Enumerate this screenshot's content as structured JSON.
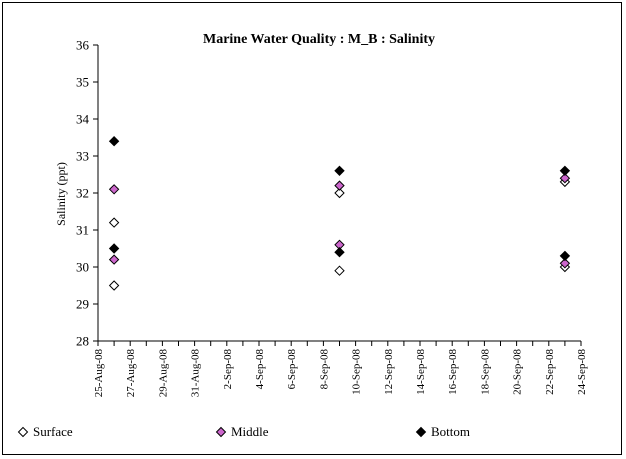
{
  "chart_data": {
    "type": "scatter",
    "title": "Marine Water Quality : M_B : Salinity",
    "ylabel": "Salinity (ppt)",
    "xlabel": "",
    "ylim": [
      28,
      36
    ],
    "yticks": [
      28,
      29,
      30,
      31,
      32,
      33,
      34,
      35,
      36
    ],
    "xlim": [
      "2008-08-25",
      "2008-09-24"
    ],
    "xtick_labels": [
      "25-Aug-08",
      "27-Aug-08",
      "29-Aug-08",
      "31-Aug-08",
      "2-Sep-08",
      "4-Sep-08",
      "6-Sep-08",
      "8-Sep-08",
      "10-Sep-08",
      "12-Sep-08",
      "14-Sep-08",
      "16-Sep-08",
      "18-Sep-08",
      "20-Sep-08",
      "22-Sep-08",
      "24-Sep-08"
    ],
    "grid": false,
    "legend_position": "bottom",
    "series": [
      {
        "name": "Surface",
        "marker": "diamond-open",
        "color": "#000000",
        "fill": "#ffffff",
        "points": [
          {
            "x": "2008-08-26",
            "y": 31.2
          },
          {
            "x": "2008-08-26",
            "y": 29.5
          },
          {
            "x": "2008-09-09",
            "y": 32.0
          },
          {
            "x": "2008-09-09",
            "y": 29.9
          },
          {
            "x": "2008-09-23",
            "y": 32.3
          },
          {
            "x": "2008-09-23",
            "y": 30.0
          }
        ]
      },
      {
        "name": "Middle",
        "marker": "diamond-filled",
        "color": "#000000",
        "fill": "#cc66cc",
        "points": [
          {
            "x": "2008-08-26",
            "y": 32.1
          },
          {
            "x": "2008-08-26",
            "y": 30.2
          },
          {
            "x": "2008-09-09",
            "y": 32.2
          },
          {
            "x": "2008-09-09",
            "y": 30.6
          },
          {
            "x": "2008-09-23",
            "y": 32.4
          },
          {
            "x": "2008-09-23",
            "y": 30.1
          }
        ]
      },
      {
        "name": "Bottom",
        "marker": "diamond-filled",
        "color": "#000000",
        "fill": "#000000",
        "points": [
          {
            "x": "2008-08-26",
            "y": 33.4
          },
          {
            "x": "2008-08-26",
            "y": 30.5
          },
          {
            "x": "2008-09-09",
            "y": 32.6
          },
          {
            "x": "2008-09-09",
            "y": 30.4
          },
          {
            "x": "2008-09-23",
            "y": 32.6
          },
          {
            "x": "2008-09-23",
            "y": 30.3
          }
        ]
      }
    ]
  }
}
